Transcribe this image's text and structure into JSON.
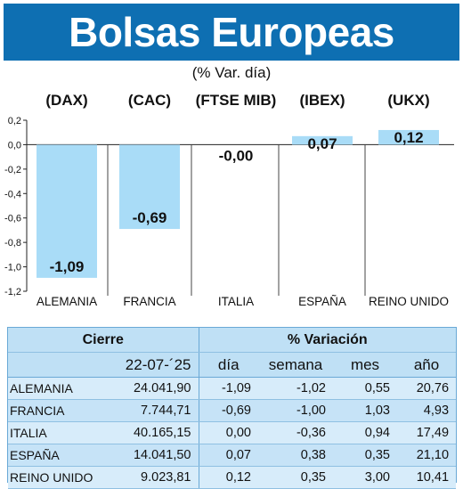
{
  "header": {
    "title": "Bolsas Europeas",
    "subtitle": "(% Var. día)"
  },
  "colors": {
    "banner": "#0e6fb2",
    "bar": "#a9dcf7",
    "table_bg": "#cfe8f8"
  },
  "chart_data": {
    "type": "bar",
    "indices": [
      "(DAX)",
      "(CAC)",
      "(FTSE MIB)",
      "(IBEX)",
      "(UKX)"
    ],
    "categories": [
      "ALEMANIA",
      "FRANCIA",
      "ITALIA",
      "ESPAÑA",
      "REINO UNIDO"
    ],
    "values": [
      -1.09,
      -0.69,
      -0.0,
      0.07,
      0.12
    ],
    "value_labels": [
      "-1,09",
      "-0,69",
      "-0,00",
      "0,07",
      "0,12"
    ],
    "yticks": [
      0.2,
      0.0,
      -0.2,
      -0.4,
      -0.6,
      -0.8,
      -1.0,
      -1.2
    ],
    "ytick_labels": [
      "0,2",
      "0,0",
      "-0,2",
      "-0,4",
      "-0,6",
      "-0,8",
      "-1,0",
      "-1,2"
    ],
    "ylim": [
      -1.2,
      0.2
    ]
  },
  "table": {
    "group_headers": [
      "Cierre",
      "% Variación"
    ],
    "col_headers": [
      "22-07-´25",
      "día",
      "semana",
      "mes",
      "año"
    ],
    "rows": [
      {
        "country": "ALEMANIA",
        "cierre": "24.041,90",
        "dia": "-1,09",
        "semana": "-1,02",
        "mes": "0,55",
        "ano": "20,76"
      },
      {
        "country": "FRANCIA",
        "cierre": "7.744,71",
        "dia": "-0,69",
        "semana": "-1,00",
        "mes": "1,03",
        "ano": "4,93"
      },
      {
        "country": "ITALIA",
        "cierre": "40.165,15",
        "dia": "0,00",
        "semana": "-0,36",
        "mes": "0,94",
        "ano": "17,49"
      },
      {
        "country": "ESPAÑA",
        "cierre": "14.041,50",
        "dia": "0,07",
        "semana": "0,38",
        "mes": "0,35",
        "ano": "21,10"
      },
      {
        "country": "REINO UNIDO",
        "cierre": "9.023,81",
        "dia": "0,12",
        "semana": "0,35",
        "mes": "3,00",
        "ano": "10,41"
      }
    ]
  }
}
